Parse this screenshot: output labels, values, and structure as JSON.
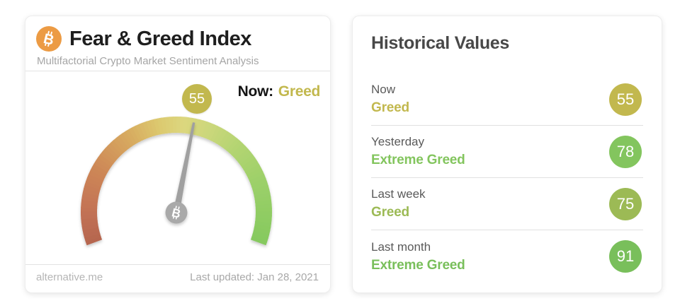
{
  "gauge_card": {
    "title": "Fear & Greed Index",
    "subtitle": "Multifactorial Crypto Market Sentiment Analysis",
    "now_label": "Now:",
    "footer_left": "alternative.me",
    "footer_right": "Last updated: Jan 28, 2021",
    "bitcoin_icon_color": "#EC9B44"
  },
  "chart_data": {
    "type": "gauge",
    "title": "Fear & Greed Index",
    "value": 55,
    "min": 0,
    "max": 100,
    "classification": "Greed",
    "arc_start_degrees": 200.5,
    "arc_span_degrees": 221,
    "arc_outer_radius": 135,
    "arc_thickness": 23,
    "color_stops": [
      {
        "pos": 0.0,
        "color": "#B5654F"
      },
      {
        "pos": 0.1,
        "color": "#C37355"
      },
      {
        "pos": 0.22,
        "color": "#CD8757"
      },
      {
        "pos": 0.35,
        "color": "#D7A95F"
      },
      {
        "pos": 0.45,
        "color": "#DCC96F"
      },
      {
        "pos": 0.52,
        "color": "#DCD77E"
      },
      {
        "pos": 0.6,
        "color": "#CBD77B"
      },
      {
        "pos": 0.7,
        "color": "#B2D471"
      },
      {
        "pos": 0.82,
        "color": "#9CD069"
      },
      {
        "pos": 1.0,
        "color": "#85C95E"
      }
    ],
    "value_badge_color": "#C2B84E",
    "classification_color": "#C2B84E",
    "needle_color": "#A0A0A0",
    "pivot_color": "#A9A9A9"
  },
  "history_card": {
    "title": "Historical Values",
    "rows": [
      {
        "period": "Now",
        "classification": "Greed",
        "value": "55",
        "color": "#C2B84E"
      },
      {
        "period": "Yesterday",
        "classification": "Extreme Greed",
        "value": "78",
        "color": "#83C55E"
      },
      {
        "period": "Last week",
        "classification": "Greed",
        "value": "75",
        "color": "#9CBA55"
      },
      {
        "period": "Last month",
        "classification": "Extreme Greed",
        "value": "91",
        "color": "#79BF5B"
      }
    ]
  }
}
